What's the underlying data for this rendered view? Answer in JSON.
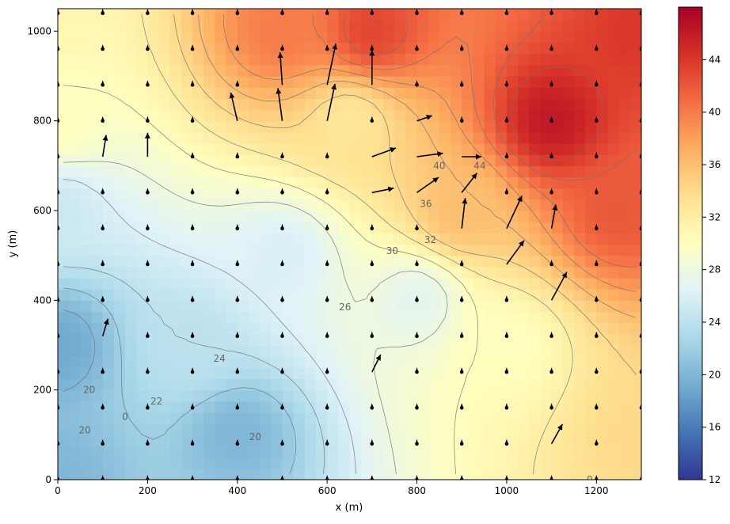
{
  "chart_data": {
    "type": "heatmap",
    "xlabel": "x (m)",
    "ylabel": "y (m)",
    "xlim": [
      0,
      1300
    ],
    "ylim": [
      0,
      1050
    ],
    "x_ticks": [
      0,
      200,
      400,
      600,
      800,
      1000,
      1200
    ],
    "y_ticks": [
      0,
      200,
      400,
      600,
      800,
      1000
    ],
    "grid": false,
    "colormap": "RdYlBu_r",
    "colorbar": {
      "range": [
        12,
        48
      ],
      "ticks": [
        12,
        16,
        20,
        24,
        28,
        32,
        36,
        40,
        44
      ]
    },
    "field": {
      "description_units": "scalar value",
      "low_region": {
        "x": 60,
        "y": 300,
        "value": 19
      },
      "high_region": {
        "x": 1150,
        "y": 820,
        "value": 46
      },
      "samples": [
        {
          "x": 0,
          "y": 0,
          "value": 20
        },
        {
          "x": 0,
          "y": 300,
          "value": 19
        },
        {
          "x": 0,
          "y": 600,
          "value": 25
        },
        {
          "x": 0,
          "y": 800,
          "value": 30
        },
        {
          "x": 0,
          "y": 1050,
          "value": 31
        },
        {
          "x": 300,
          "y": 300,
          "value": 24
        },
        {
          "x": 400,
          "y": 100,
          "value": 20
        },
        {
          "x": 500,
          "y": 500,
          "value": 26
        },
        {
          "x": 500,
          "y": 1000,
          "value": 40
        },
        {
          "x": 650,
          "y": 800,
          "value": 33
        },
        {
          "x": 700,
          "y": 1000,
          "value": 43
        },
        {
          "x": 800,
          "y": 400,
          "value": 27
        },
        {
          "x": 900,
          "y": 600,
          "value": 36
        },
        {
          "x": 1000,
          "y": 300,
          "value": 30
        },
        {
          "x": 1100,
          "y": 800,
          "value": 46
        },
        {
          "x": 1250,
          "y": 600,
          "value": 42
        },
        {
          "x": 1300,
          "y": 100,
          "value": 34
        },
        {
          "x": 1300,
          "y": 1000,
          "value": 44
        }
      ]
    },
    "contour_labels": [
      {
        "x": 1185,
        "y": 0,
        "text": "0",
        "note": "partially visible"
      },
      {
        "x": 150,
        "y": 140,
        "text": "0"
      },
      {
        "x": 70,
        "y": 200,
        "text": "20"
      },
      {
        "x": 60,
        "y": 110,
        "text": "20"
      },
      {
        "x": 440,
        "y": 95,
        "text": "20"
      },
      {
        "x": 220,
        "y": 175,
        "text": "22"
      },
      {
        "x": 360,
        "y": 270,
        "text": "24"
      },
      {
        "x": 640,
        "y": 385,
        "text": "26"
      },
      {
        "x": 745,
        "y": 510,
        "text": "30"
      },
      {
        "x": 830,
        "y": 535,
        "text": "32"
      },
      {
        "x": 820,
        "y": 615,
        "text": "36"
      },
      {
        "x": 850,
        "y": 700,
        "text": "40"
      },
      {
        "x": 940,
        "y": 700,
        "text": "44"
      }
    ],
    "vector_field": {
      "x_grid": [
        0,
        100,
        200,
        300,
        400,
        500,
        600,
        700,
        800,
        900,
        1000,
        1100,
        1200,
        1300
      ],
      "y_grid": [
        0,
        80,
        160,
        240,
        320,
        400,
        480,
        560,
        640,
        720,
        800,
        880,
        960,
        1040
      ],
      "vectors": [
        {
          "x": 100,
          "y": 720,
          "u": 8,
          "v": 50
        },
        {
          "x": 200,
          "y": 720,
          "u": 0,
          "v": 55
        },
        {
          "x": 400,
          "y": 800,
          "u": -15,
          "v": 65
        },
        {
          "x": 500,
          "y": 800,
          "u": -10,
          "v": 75
        },
        {
          "x": 600,
          "y": 800,
          "u": 18,
          "v": 85
        },
        {
          "x": 500,
          "y": 880,
          "u": -5,
          "v": 75
        },
        {
          "x": 600,
          "y": 880,
          "u": 20,
          "v": 95
        },
        {
          "x": 700,
          "y": 880,
          "u": 0,
          "v": 80
        },
        {
          "x": 700,
          "y": 720,
          "u": 55,
          "v": 20
        },
        {
          "x": 800,
          "y": 720,
          "u": 60,
          "v": 8
        },
        {
          "x": 700,
          "y": 640,
          "u": 50,
          "v": 10
        },
        {
          "x": 800,
          "y": 640,
          "u": 50,
          "v": 35
        },
        {
          "x": 900,
          "y": 640,
          "u": 35,
          "v": 45
        },
        {
          "x": 900,
          "y": 560,
          "u": 8,
          "v": 70
        },
        {
          "x": 1000,
          "y": 560,
          "u": 35,
          "v": 75
        },
        {
          "x": 1100,
          "y": 560,
          "u": 10,
          "v": 55
        },
        {
          "x": 1000,
          "y": 480,
          "u": 40,
          "v": 55
        },
        {
          "x": 1100,
          "y": 400,
          "u": 35,
          "v": 65
        },
        {
          "x": 1100,
          "y": 80,
          "u": 25,
          "v": 45
        },
        {
          "x": 1300,
          "y": 80,
          "u": 25,
          "v": 25
        },
        {
          "x": 700,
          "y": 240,
          "u": 20,
          "v": 40
        },
        {
          "x": 100,
          "y": 320,
          "u": 12,
          "v": 40
        },
        {
          "x": 800,
          "y": 800,
          "u": 35,
          "v": 12
        },
        {
          "x": 900,
          "y": 720,
          "u": 45,
          "v": 0
        }
      ]
    }
  }
}
